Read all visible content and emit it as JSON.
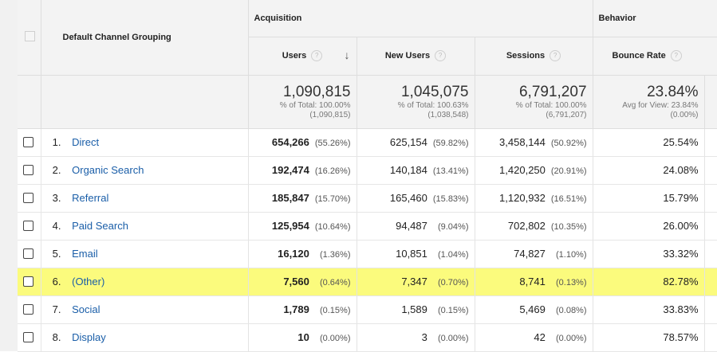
{
  "header": {
    "column_dimension": "Default Channel Grouping",
    "group_acquisition": "Acquisition",
    "group_behavior": "Behavior",
    "col_users": "Users",
    "col_new_users": "New Users",
    "col_sessions": "Sessions",
    "col_bounce_rate": "Bounce Rate",
    "help_glyph": "?",
    "sort_glyph": "↓"
  },
  "totals": {
    "users": {
      "value": "1,090,815",
      "line1": "% of Total: 100.00%",
      "line2": "(1,090,815)"
    },
    "new_users": {
      "value": "1,045,075",
      "line1": "% of Total: 100.63%",
      "line2": "(1,038,548)"
    },
    "sessions": {
      "value": "6,791,207",
      "line1": "% of Total: 100.00%",
      "line2": "(6,791,207)"
    },
    "bounce_rate": {
      "value": "23.84%",
      "line1": "Avg for View: 23.84%",
      "line2": "(0.00%)"
    }
  },
  "rows": [
    {
      "rank": "1.",
      "channel": "Direct",
      "users": "654,266",
      "users_pct": "(55.26%)",
      "new_users": "625,154",
      "new_users_pct": "(59.82%)",
      "sessions": "3,458,144",
      "sessions_pct": "(50.92%)",
      "bounce_rate": "25.54%"
    },
    {
      "rank": "2.",
      "channel": "Organic Search",
      "users": "192,474",
      "users_pct": "(16.26%)",
      "new_users": "140,184",
      "new_users_pct": "(13.41%)",
      "sessions": "1,420,250",
      "sessions_pct": "(20.91%)",
      "bounce_rate": "24.08%"
    },
    {
      "rank": "3.",
      "channel": "Referral",
      "users": "185,847",
      "users_pct": "(15.70%)",
      "new_users": "165,460",
      "new_users_pct": "(15.83%)",
      "sessions": "1,120,932",
      "sessions_pct": "(16.51%)",
      "bounce_rate": "15.79%"
    },
    {
      "rank": "4.",
      "channel": "Paid Search",
      "users": "125,954",
      "users_pct": "(10.64%)",
      "new_users": "94,487",
      "new_users_pct": "(9.04%)",
      "sessions": "702,802",
      "sessions_pct": "(10.35%)",
      "bounce_rate": "26.00%"
    },
    {
      "rank": "5.",
      "channel": "Email",
      "users": "16,120",
      "users_pct": "(1.36%)",
      "new_users": "10,851",
      "new_users_pct": "(1.04%)",
      "sessions": "74,827",
      "sessions_pct": "(1.10%)",
      "bounce_rate": "33.32%"
    },
    {
      "rank": "6.",
      "channel": "(Other)",
      "users": "7,560",
      "users_pct": "(0.64%)",
      "new_users": "7,347",
      "new_users_pct": "(0.70%)",
      "sessions": "8,741",
      "sessions_pct": "(0.13%)",
      "bounce_rate": "82.78%"
    },
    {
      "rank": "7.",
      "channel": "Social",
      "users": "1,789",
      "users_pct": "(0.15%)",
      "new_users": "1,589",
      "new_users_pct": "(0.15%)",
      "sessions": "5,469",
      "sessions_pct": "(0.08%)",
      "bounce_rate": "33.83%"
    },
    {
      "rank": "8.",
      "channel": "Display",
      "users": "10",
      "users_pct": "(0.00%)",
      "new_users": "3",
      "new_users_pct": "(0.00%)",
      "sessions": "42",
      "sessions_pct": "(0.00%)",
      "bounce_rate": "78.57%"
    }
  ],
  "highlighted_row_rank": "6.",
  "colors": {
    "highlight": "#fbfb7d",
    "link": "#1a5ea8",
    "header_bg": "#f3f3f3"
  }
}
